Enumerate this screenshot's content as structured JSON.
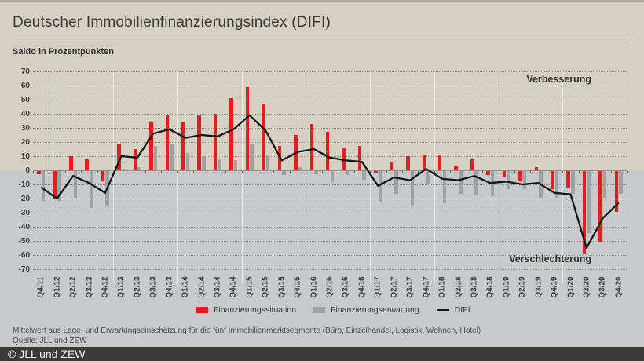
{
  "header": {
    "title": "Deutscher Immobilienfinanzierungsindex (DIFI)",
    "subtitle": "Saldo in Prozentpunkten"
  },
  "chart_data": {
    "type": "bar",
    "title": "Deutscher Immobilienfinanzierungsindex (DIFI)",
    "ylabel": "Saldo in Prozentpunkten",
    "ylim": [
      -70,
      70
    ],
    "ytick_step": 10,
    "grid": "horizontal-dotted",
    "legend_position": "bottom",
    "categories": [
      "Q4/11",
      "Q1/12",
      "Q2/12",
      "Q3/12",
      "Q4/12",
      "Q1/13",
      "Q2/13",
      "Q3/13",
      "Q4/13",
      "Q1/14",
      "Q2/14",
      "Q3/14",
      "Q4/14",
      "Q1/15",
      "Q2/15",
      "Q3/15",
      "Q4/15",
      "Q1/16",
      "Q2/16",
      "Q3/16",
      "Q4/16",
      "Q1/17",
      "Q2/17",
      "Q3/17",
      "Q4/17",
      "Q1/18",
      "Q2/18",
      "Q3/18",
      "Q4/18",
      "Q1/19",
      "Q2/19",
      "Q3/19",
      "Q4/19",
      "Q1/20",
      "Q2/20",
      "Q3/20",
      "Q4/20"
    ],
    "series": [
      {
        "name": "Finanzierungssituation",
        "type": "bar",
        "color": "#e02020",
        "values": [
          -2,
          -20,
          10,
          8,
          -7,
          19,
          15,
          34,
          39,
          34,
          39,
          40,
          51,
          59,
          47,
          17,
          25,
          33,
          27,
          16,
          17,
          -1,
          6,
          10,
          11,
          11,
          3,
          8,
          -3,
          -4,
          -7,
          2,
          -13,
          -12,
          -59,
          -50,
          -29
        ]
      },
      {
        "name": "Finanzierungserwartung",
        "type": "bar",
        "color": "#9fa1a4",
        "values": [
          -21,
          -21,
          -19,
          -26,
          -25,
          1,
          2,
          17,
          19,
          12,
          10,
          8,
          7,
          19,
          11,
          -3,
          2,
          -2,
          -8,
          -3,
          -6,
          -22,
          -16,
          -25,
          -9,
          -23,
          -16,
          -17,
          -18,
          -13,
          -13,
          -19,
          -19,
          -16,
          -44,
          -19,
          -16
        ]
      },
      {
        "name": "DIFI",
        "type": "line",
        "color": "#161616",
        "values": [
          -12,
          -20,
          -4,
          -9,
          -16,
          10,
          9,
          26,
          29,
          23,
          25,
          24,
          29,
          39,
          28,
          7,
          13,
          15,
          9,
          7,
          6,
          -11,
          -5,
          -7,
          1,
          -6,
          -7,
          -4,
          -9,
          -8,
          -10,
          -9,
          -16,
          -17,
          -55,
          -34,
          -23
        ]
      }
    ],
    "annotations": {
      "improvement": "Verbesserung",
      "deterioration": "Verschlechterung"
    }
  },
  "footer": {
    "note": "Mittelwert aus Lage- und Erwartungseinschätzung für die fünf Immobilienmarktsegmente (Büro, Einzelhandel, Logistik, Wohnen, Hotel)",
    "source": "Quelle: JLL und ZEW",
    "copyright": "© JLL und ZEW"
  },
  "colors": {
    "background_positive": "#d5d0c2",
    "background_negative": "#c7c9cb",
    "situation_bar": "#e02020",
    "expectation_bar": "#9fa1a4",
    "difi_line": "#161616",
    "text": "#3a3a38",
    "copyright_bar": "#3a3a38"
  }
}
